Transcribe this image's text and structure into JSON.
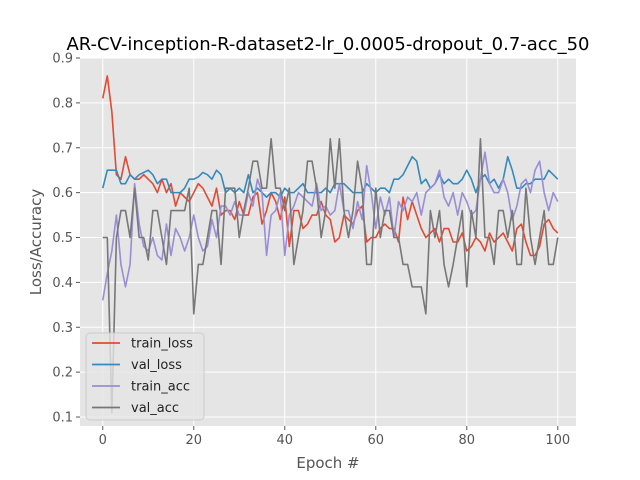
{
  "chart_data": {
    "type": "line",
    "title": "AR-CV-inception-R-dataset2-lr_0.0005-dropout_0.7-acc_50",
    "xlabel": "Epoch #",
    "ylabel": "Loss/Accuracy",
    "xlim": [
      -5,
      104
    ],
    "ylim": [
      0.08,
      0.9
    ],
    "xticks": [
      0,
      20,
      40,
      60,
      80,
      100
    ],
    "yticks": [
      0.1,
      0.2,
      0.3,
      0.4,
      0.5,
      0.6,
      0.7,
      0.8,
      0.9
    ],
    "grid": true,
    "legend_position": "lower-left",
    "style": "ggplot",
    "series": [
      {
        "name": "train_loss",
        "color": "#E24A33",
        "values": [
          0.81,
          0.86,
          0.78,
          0.64,
          0.63,
          0.68,
          0.64,
          0.63,
          0.63,
          0.64,
          0.63,
          0.62,
          0.6,
          0.63,
          0.6,
          0.62,
          0.57,
          0.6,
          0.59,
          0.58,
          0.6,
          0.62,
          0.61,
          0.59,
          0.57,
          0.61,
          0.55,
          0.56,
          0.56,
          0.54,
          0.58,
          0.55,
          0.55,
          0.59,
          0.6,
          0.53,
          0.56,
          0.6,
          0.58,
          0.54,
          0.59,
          0.48,
          0.56,
          0.56,
          0.52,
          0.53,
          0.55,
          0.55,
          0.58,
          0.55,
          0.54,
          0.49,
          0.5,
          0.55,
          0.54,
          0.53,
          0.56,
          0.57,
          0.49,
          0.5,
          0.5,
          0.52,
          0.53,
          0.52,
          0.52,
          0.49,
          0.59,
          0.54,
          0.58,
          0.55,
          0.52,
          0.5,
          0.51,
          0.52,
          0.49,
          0.52,
          0.52,
          0.49,
          0.49,
          0.51,
          0.47,
          0.48,
          0.5,
          0.49,
          0.47,
          0.51,
          0.49,
          0.5,
          0.51,
          0.49,
          0.47,
          0.52,
          0.53,
          0.49,
          0.46,
          0.46,
          0.48,
          0.53,
          0.54,
          0.52,
          0.51
        ]
      },
      {
        "name": "val_loss",
        "color": "#348ABD",
        "values": [
          0.61,
          0.65,
          0.65,
          0.65,
          0.62,
          0.62,
          0.64,
          0.63,
          0.64,
          0.645,
          0.65,
          0.64,
          0.62,
          0.63,
          0.63,
          0.6,
          0.6,
          0.6,
          0.61,
          0.63,
          0.63,
          0.635,
          0.645,
          0.64,
          0.63,
          0.65,
          0.64,
          0.6,
          0.61,
          0.6,
          0.61,
          0.6,
          0.64,
          0.6,
          0.61,
          0.6,
          0.59,
          0.6,
          0.6,
          0.59,
          0.61,
          0.6,
          0.6,
          0.61,
          0.62,
          0.6,
          0.6,
          0.6,
          0.6,
          0.61,
          0.6,
          0.62,
          0.62,
          0.62,
          0.61,
          0.6,
          0.6,
          0.6,
          0.62,
          0.61,
          0.6,
          0.61,
          0.61,
          0.6,
          0.63,
          0.63,
          0.64,
          0.66,
          0.68,
          0.67,
          0.62,
          0.63,
          0.61,
          0.62,
          0.64,
          0.62,
          0.63,
          0.62,
          0.62,
          0.63,
          0.65,
          0.63,
          0.6,
          0.63,
          0.64,
          0.62,
          0.63,
          0.61,
          0.63,
          0.68,
          0.65,
          0.61,
          0.61,
          0.62,
          0.62,
          0.63,
          0.63,
          0.63,
          0.65,
          0.64,
          0.63
        ]
      },
      {
        "name": "train_acc",
        "color": "#988ED5",
        "values": [
          0.36,
          0.42,
          0.47,
          0.55,
          0.44,
          0.39,
          0.44,
          0.62,
          0.53,
          0.48,
          0.47,
          0.5,
          0.46,
          0.45,
          0.53,
          0.46,
          0.52,
          0.5,
          0.47,
          0.5,
          0.55,
          0.5,
          0.47,
          0.48,
          0.54,
          0.5,
          0.57,
          0.57,
          0.55,
          0.58,
          0.55,
          0.55,
          0.6,
          0.57,
          0.63,
          0.6,
          0.46,
          0.55,
          0.56,
          0.6,
          0.46,
          0.55,
          0.57,
          0.6,
          0.59,
          0.58,
          0.57,
          0.62,
          0.56,
          0.57,
          0.55,
          0.56,
          0.62,
          0.56,
          0.56,
          0.52,
          0.58,
          0.54,
          0.66,
          0.6,
          0.52,
          0.59,
          0.55,
          0.59,
          0.5,
          0.58,
          0.56,
          0.59,
          0.58,
          0.6,
          0.55,
          0.6,
          0.61,
          0.62,
          0.65,
          0.59,
          0.57,
          0.6,
          0.55,
          0.6,
          0.58,
          0.55,
          0.56,
          0.63,
          0.69,
          0.62,
          0.6,
          0.6,
          0.63,
          0.6,
          0.54,
          0.57,
          0.62,
          0.63,
          0.6,
          0.65,
          0.67,
          0.6,
          0.56,
          0.6,
          0.58
        ]
      },
      {
        "name": "val_acc",
        "color": "#777777",
        "values": [
          0.5,
          0.5,
          0.11,
          0.5,
          0.56,
          0.56,
          0.5,
          0.61,
          0.5,
          0.5,
          0.45,
          0.56,
          0.56,
          0.5,
          0.44,
          0.56,
          0.56,
          0.56,
          0.56,
          0.61,
          0.33,
          0.44,
          0.44,
          0.5,
          0.56,
          0.56,
          0.44,
          0.61,
          0.61,
          0.61,
          0.5,
          0.56,
          0.61,
          0.67,
          0.67,
          0.61,
          0.61,
          0.72,
          0.61,
          0.61,
          0.56,
          0.61,
          0.44,
          0.5,
          0.56,
          0.67,
          0.67,
          0.61,
          0.5,
          0.56,
          0.72,
          0.61,
          0.72,
          0.56,
          0.5,
          0.56,
          0.67,
          0.61,
          0.44,
          0.44,
          0.61,
          0.5,
          0.56,
          0.56,
          0.5,
          0.5,
          0.44,
          0.44,
          0.39,
          0.39,
          0.39,
          0.33,
          0.56,
          0.5,
          0.56,
          0.44,
          0.39,
          0.44,
          0.5,
          0.56,
          0.39,
          0.56,
          0.5,
          0.72,
          0.5,
          0.5,
          0.44,
          0.56,
          0.56,
          0.5,
          0.56,
          0.44,
          0.44,
          0.61,
          0.5,
          0.44,
          0.5,
          0.56,
          0.44,
          0.44,
          0.5
        ]
      }
    ]
  }
}
